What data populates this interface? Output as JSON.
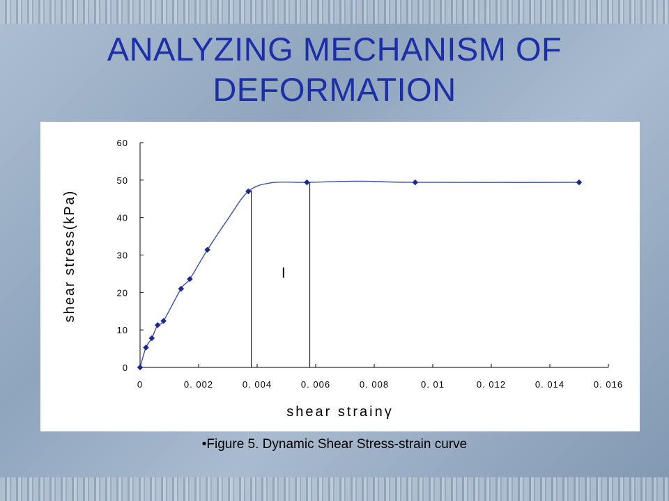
{
  "slide": {
    "title_line1": "ANALYZING MECHANISM OF",
    "title_line2": "DEFORMATION",
    "caption": "•Figure 5.  Dynamic Shear Stress-strain curve"
  },
  "colors": {
    "title": "#1d2fa8",
    "marker": "#1a2a8c",
    "curve": "#3a4fb0",
    "axis": "#000000"
  },
  "chart_data": {
    "type": "scatter",
    "xlabel": "shear  strainγ",
    "ylabel": "shear stress(kPa)",
    "xlim": [
      0,
      0.016
    ],
    "ylim": [
      0,
      60
    ],
    "x_ticks": [
      0,
      0.002,
      0.004,
      0.006,
      0.008,
      0.01,
      0.012,
      0.014,
      0.016
    ],
    "x_tick_labels": [
      "0",
      "0. 002",
      "0. 004",
      "0. 006",
      "0. 008",
      "0. 01",
      "0. 012",
      "0. 014",
      "0. 016"
    ],
    "y_ticks": [
      0,
      10,
      20,
      30,
      40,
      50,
      60
    ],
    "y_tick_labels": [
      "0",
      "10",
      "20",
      "30",
      "40",
      "50",
      "60"
    ],
    "grid": false,
    "series": [
      {
        "points": [
          [
            0,
            0
          ],
          [
            0.0002,
            5.3
          ],
          [
            0.0004,
            7.8
          ],
          [
            0.0006,
            11.3
          ],
          [
            0.0008,
            12.4
          ],
          [
            0.0014,
            21.0
          ],
          [
            0.0017,
            23.6
          ],
          [
            0.0023,
            31.4
          ],
          [
            0.0037,
            47.0
          ],
          [
            0.0057,
            49.4
          ],
          [
            0.0094,
            49.4
          ],
          [
            0.015,
            49.4
          ]
        ]
      }
    ],
    "curve": [
      [
        0,
        0
      ],
      [
        0.0002,
        5.3
      ],
      [
        0.0004,
        7.8
      ],
      [
        0.0006,
        11.3
      ],
      [
        0.0008,
        12.4
      ],
      [
        0.0014,
        21.0
      ],
      [
        0.0017,
        23.6
      ],
      [
        0.0023,
        31.4
      ],
      [
        0.003,
        39.6
      ],
      [
        0.0037,
        47.0
      ],
      [
        0.0045,
        49.3
      ],
      [
        0.0057,
        49.4
      ],
      [
        0.0075,
        49.7
      ],
      [
        0.0094,
        49.4
      ],
      [
        0.015,
        49.4
      ]
    ],
    "reference_lines_x": [
      0.0038,
      0.0058
    ],
    "annotation": "Ⅰ",
    "annotation_pos": [
      0.0049,
      24
    ]
  }
}
